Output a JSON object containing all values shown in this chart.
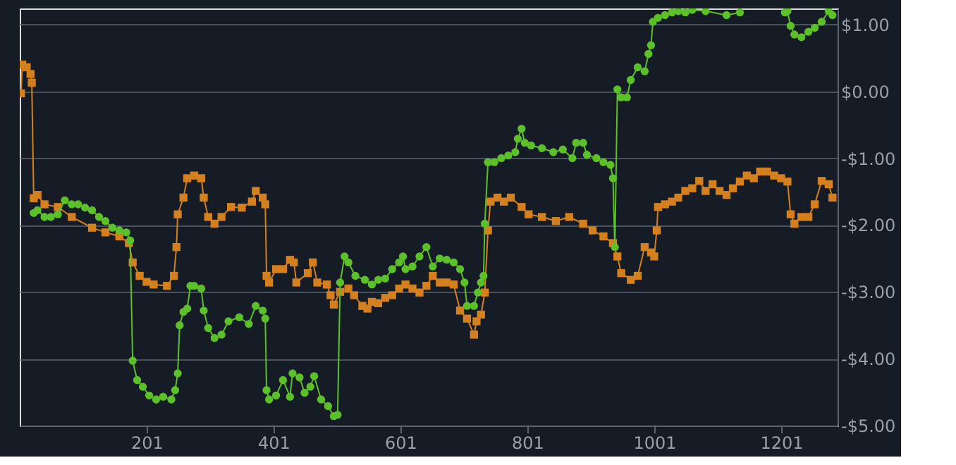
{
  "chart_data": {
    "type": "line",
    "xlim": [
      1,
      1290
    ],
    "ylim": [
      -5,
      1.24
    ],
    "xticks": [
      201,
      401,
      601,
      801,
      1001,
      1201
    ],
    "yticks": [
      {
        "value": 1,
        "label": "$1.00"
      },
      {
        "value": 0,
        "label": "$0.00"
      },
      {
        "value": -1,
        "label": "-$1.00"
      },
      {
        "value": -2,
        "label": "-$2.00"
      },
      {
        "value": -3,
        "label": "-$3.00"
      },
      {
        "value": -4,
        "label": "-$4.00"
      },
      {
        "value": -5,
        "label": "-$5.00"
      }
    ],
    "grid": "y",
    "legend": false,
    "line_style": "solid",
    "series": [
      {
        "color": "#d4801e",
        "marker": "square",
        "x": [
          3,
          5,
          12,
          18,
          20,
          23,
          29,
          40,
          61,
          83,
          115,
          136,
          158,
          173,
          179,
          190,
          201,
          212,
          233,
          244,
          248,
          250,
          259,
          265,
          276,
          287,
          291,
          298,
          308,
          319,
          334,
          351,
          367,
          373,
          384,
          388,
          390,
          394,
          405,
          416,
          427,
          433,
          437,
          455,
          463,
          470,
          485,
          491,
          496,
          506,
          519,
          528,
          541,
          549,
          556,
          566,
          577,
          588,
          599,
          609,
          620,
          631,
          642,
          652,
          663,
          674,
          685,
          695,
          706,
          717,
          721,
          728,
          734,
          739,
          743,
          754,
          764,
          775,
          792,
          803,
          824,
          846,
          867,
          889,
          904,
          921,
          936,
          943,
          949,
          964,
          975,
          986,
          996,
          1001,
          1005,
          1007,
          1018,
          1029,
          1039,
          1050,
          1061,
          1072,
          1082,
          1093,
          1104,
          1115,
          1125,
          1136,
          1147,
          1158,
          1168,
          1179,
          1190,
          1201,
          1211,
          1216,
          1222,
          1233,
          1244,
          1254,
          1265,
          1276,
          1282
        ],
        "values": [
          -0.03,
          0.4,
          0.36,
          0.26,
          0.13,
          -1.6,
          -1.55,
          -1.69,
          -1.73,
          -1.88,
          -2.04,
          -2.11,
          -2.17,
          -2.27,
          -2.56,
          -2.76,
          -2.85,
          -2.89,
          -2.91,
          -2.76,
          -2.33,
          -1.84,
          -1.59,
          -1.3,
          -1.26,
          -1.3,
          -1.59,
          -1.88,
          -1.98,
          -1.88,
          -1.73,
          -1.74,
          -1.65,
          -1.49,
          -1.59,
          -1.69,
          -2.76,
          -2.86,
          -2.66,
          -2.66,
          -2.52,
          -2.56,
          -2.86,
          -2.72,
          -2.56,
          -2.86,
          -2.89,
          -3.05,
          -3.19,
          -3.0,
          -2.95,
          -3.05,
          -3.21,
          -3.25,
          -3.15,
          -3.17,
          -3.09,
          -3.05,
          -2.95,
          -2.89,
          -2.95,
          -3.01,
          -2.91,
          -2.76,
          -2.86,
          -2.86,
          -2.89,
          -3.28,
          -3.4,
          -3.64,
          -3.44,
          -3.34,
          -3.01,
          -2.08,
          -1.65,
          -1.59,
          -1.65,
          -1.59,
          -1.73,
          -1.84,
          -1.88,
          -1.94,
          -1.88,
          -1.98,
          -2.08,
          -2.17,
          -2.27,
          -2.47,
          -2.72,
          -2.82,
          -2.76,
          -2.33,
          -2.41,
          -2.47,
          -2.08,
          -1.73,
          -1.69,
          -1.65,
          -1.59,
          -1.49,
          -1.45,
          -1.34,
          -1.49,
          -1.39,
          -1.49,
          -1.55,
          -1.45,
          -1.35,
          -1.26,
          -1.3,
          -1.2,
          -1.2,
          -1.26,
          -1.3,
          -1.35,
          -1.84,
          -1.98,
          -1.88,
          -1.88,
          -1.69,
          -1.34,
          -1.39,
          -1.59
        ]
      },
      {
        "color": "#5cc02a",
        "marker": "circle",
        "x": [
          23,
          29,
          40,
          50,
          61,
          72,
          83,
          93,
          104,
          115,
          126,
          136,
          147,
          158,
          169,
          175,
          179,
          186,
          195,
          205,
          216,
          227,
          240,
          246,
          250,
          253,
          259,
          265,
          270,
          276,
          287,
          291,
          298,
          308,
          319,
          330,
          347,
          362,
          373,
          384,
          388,
          390,
          394,
          405,
          416,
          427,
          431,
          442,
          450,
          459,
          465,
          476,
          487,
          496,
          502,
          506,
          513,
          519,
          530,
          545,
          556,
          566,
          577,
          588,
          599,
          605,
          609,
          620,
          631,
          642,
          652,
          663,
          674,
          685,
          695,
          702,
          706,
          717,
          723,
          728,
          732,
          734,
          739,
          749,
          760,
          771,
          782,
          786,
          792,
          797,
          807,
          824,
          842,
          857,
          872,
          878,
          889,
          895,
          910,
          921,
          932,
          936,
          939,
          943,
          949,
          958,
          964,
          975,
          986,
          992,
          996,
          999,
          1007,
          1018,
          1029,
          1039,
          1050,
          1061,
          1082,
          1115,
          1136,
          1170,
          1207,
          1211,
          1216,
          1222,
          1233,
          1244,
          1254,
          1265,
          1276,
          1282
        ],
        "values": [
          -1.82,
          -1.78,
          -1.88,
          -1.88,
          -1.84,
          -1.63,
          -1.69,
          -1.69,
          -1.74,
          -1.78,
          -1.88,
          -1.94,
          -2.04,
          -2.08,
          -2.11,
          -2.23,
          -4.03,
          -4.32,
          -4.42,
          -4.55,
          -4.61,
          -4.57,
          -4.61,
          -4.47,
          -4.22,
          -3.5,
          -3.3,
          -3.25,
          -2.91,
          -2.91,
          -2.95,
          -3.28,
          -3.54,
          -3.69,
          -3.64,
          -3.44,
          -3.38,
          -3.48,
          -3.21,
          -3.28,
          -3.4,
          -4.47,
          -4.61,
          -4.55,
          -4.32,
          -4.57,
          -4.22,
          -4.28,
          -4.51,
          -4.42,
          -4.26,
          -4.61,
          -4.71,
          -4.86,
          -4.84,
          -2.86,
          -2.47,
          -2.56,
          -2.76,
          -2.82,
          -2.89,
          -2.82,
          -2.8,
          -2.66,
          -2.56,
          -2.47,
          -2.66,
          -2.62,
          -2.47,
          -2.33,
          -2.62,
          -2.5,
          -2.52,
          -2.56,
          -2.66,
          -2.86,
          -3.21,
          -3.21,
          -3.01,
          -2.86,
          -2.76,
          -1.98,
          -1.06,
          -1.06,
          -1.0,
          -0.96,
          -0.91,
          -0.71,
          -0.56,
          -0.77,
          -0.81,
          -0.85,
          -0.91,
          -0.87,
          -1.0,
          -0.77,
          -0.77,
          -0.95,
          -1.0,
          -1.06,
          -1.1,
          -1.3,
          -2.33,
          0.03,
          -0.09,
          -0.09,
          0.17,
          0.36,
          0.3,
          0.56,
          0.69,
          1.04,
          1.1,
          1.14,
          1.18,
          1.2,
          1.18,
          1.22,
          1.2,
          1.14,
          1.18,
          null,
          1.18,
          1.2,
          0.98,
          0.85,
          0.81,
          0.89,
          0.95,
          1.04,
          1.2,
          1.14
        ]
      }
    ]
  }
}
